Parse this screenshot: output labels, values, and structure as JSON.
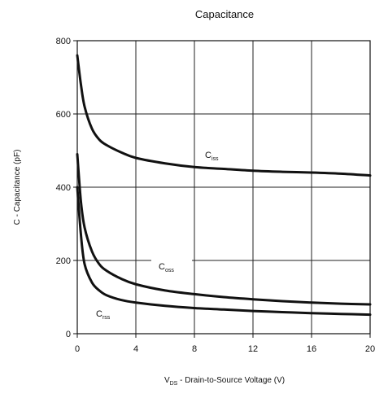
{
  "chart_data": {
    "type": "line",
    "title": "Capacitance",
    "xlabel": "V  -  Drain-to-Source Voltage (V)",
    "xlabel_main": "V",
    "xlabel_sub": "DS",
    "xlabel_rest": "  -  Drain-to-Source Voltage (V)",
    "ylabel": "C  -  Capacitance (pF)",
    "xlim": [
      0,
      20
    ],
    "ylim": [
      0,
      800
    ],
    "xticks": [
      0,
      4,
      8,
      12,
      16,
      20
    ],
    "yticks": [
      0,
      200,
      400,
      600,
      800
    ],
    "grid": true,
    "series": [
      {
        "name": "Ciss",
        "label_main": "C",
        "label_sub": "iss",
        "x": [
          0,
          0.25,
          0.5,
          1,
          1.5,
          2,
          3,
          4,
          6,
          8,
          10,
          12,
          14,
          16,
          18,
          20
        ],
        "y": [
          760,
          680,
          620,
          560,
          530,
          515,
          495,
          480,
          465,
          455,
          450,
          445,
          442,
          440,
          437,
          432
        ]
      },
      {
        "name": "Coss",
        "label_main": "C",
        "label_sub": "oss",
        "x": [
          0,
          0.25,
          0.5,
          1,
          1.5,
          2,
          3,
          4,
          6,
          8,
          10,
          12,
          14,
          16,
          18,
          20
        ],
        "y": [
          490,
          360,
          290,
          225,
          190,
          172,
          150,
          135,
          118,
          108,
          100,
          94,
          89,
          85,
          82,
          80
        ]
      },
      {
        "name": "Crss",
        "label_main": "C",
        "label_sub": "rss",
        "x": [
          0,
          0.25,
          0.5,
          1,
          1.5,
          2,
          3,
          4,
          6,
          8,
          10,
          12,
          14,
          16,
          18,
          20
        ],
        "y": [
          400,
          270,
          190,
          140,
          118,
          105,
          92,
          85,
          76,
          70,
          66,
          62,
          59,
          56,
          54,
          52
        ]
      }
    ]
  }
}
